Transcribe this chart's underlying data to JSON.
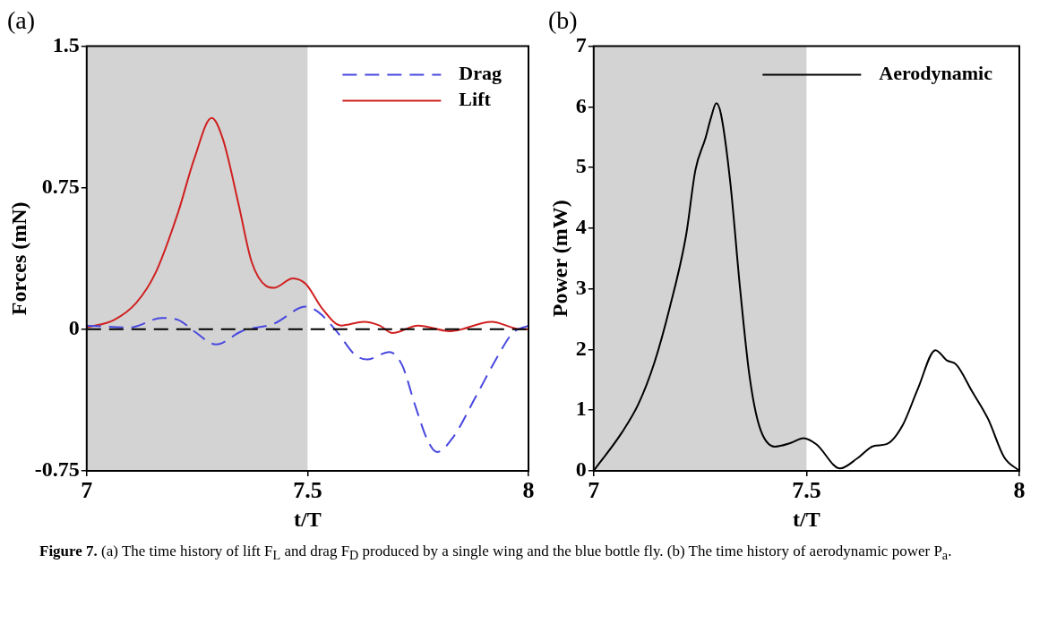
{
  "chart_data": [
    {
      "type": "line",
      "title": "(a)",
      "xlabel": "t/T",
      "ylabel": "Forces (mN)",
      "xlim": [
        7,
        8
      ],
      "xticks": [
        7,
        7.5,
        8
      ],
      "ylim": [
        -0.75,
        1.5
      ],
      "yticks": [
        -0.75,
        0,
        0.75,
        1.5
      ],
      "legend": "top right",
      "bands": [
        {
          "axis": "x",
          "from": 7,
          "to": 7.5,
          "color": "#d3d3d3"
        }
      ],
      "ref_lines": [
        {
          "axis": "y",
          "value": 0,
          "color": "#000000",
          "line_style": "dashed"
        }
      ],
      "series": [
        {
          "name": "Drag",
          "color": "#4848e0",
          "line_style": "dashed",
          "x": [
            7,
            7.098,
            7.17,
            7.207,
            7.243,
            7.293,
            7.351,
            7.424,
            7.496,
            7.525,
            7.569,
            7.605,
            7.634,
            7.685,
            7.714,
            7.743,
            7.772,
            7.793,
            7.83,
            7.88,
            7.931,
            7.964,
            8
          ],
          "values": [
            0.02,
            0.01,
            0.06,
            0.05,
            -0.01,
            -0.08,
            -0.01,
            0.03,
            0.12,
            0.09,
            -0.02,
            -0.13,
            -0.16,
            -0.12,
            -0.19,
            -0.4,
            -0.59,
            -0.65,
            -0.57,
            -0.36,
            -0.14,
            -0.02,
            0.02
          ]
        },
        {
          "name": "Lift",
          "color": "#d02020",
          "line_style": "solid",
          "x": [
            7,
            7.062,
            7.112,
            7.156,
            7.207,
            7.243,
            7.283,
            7.308,
            7.344,
            7.373,
            7.406,
            7.424,
            7.467,
            7.496,
            7.533,
            7.576,
            7.627,
            7.663,
            7.692,
            7.75,
            7.822,
            7.917,
            7.982,
            8
          ],
          "values": [
            0.01,
            0.05,
            0.14,
            0.3,
            0.62,
            0.9,
            1.12,
            1.01,
            0.66,
            0.36,
            0.23,
            0.22,
            0.27,
            0.24,
            0.11,
            0.02,
            0.04,
            0.02,
            -0.02,
            0.02,
            -0.01,
            0.04,
            0,
            0
          ]
        }
      ]
    },
    {
      "type": "line",
      "title": "(b)",
      "xlabel": "t/T",
      "ylabel": "Power (mW)",
      "xlim": [
        7,
        8
      ],
      "xticks": [
        7,
        7.5,
        8
      ],
      "ylim": [
        0,
        7
      ],
      "yticks": [
        0,
        1,
        2,
        3,
        4,
        5,
        6,
        7
      ],
      "legend": "top right",
      "bands": [
        {
          "axis": "x",
          "from": 7,
          "to": 7.5,
          "color": "#d3d3d3"
        }
      ],
      "annotations": [
        "Figure 7.",
        "(a) The time history of lift F$_{L}$ and drag F$_{D}$ produced by a single wing and the blue bottle fly. (b) The time history of aerodynamic power P$_{a}$."
      ],
      "series": [
        {
          "name": "Aerodynamic",
          "color": "#000000",
          "line_style": "solid",
          "x": [
            7,
            7.067,
            7.105,
            7.142,
            7.179,
            7.217,
            7.239,
            7.262,
            7.276,
            7.288,
            7.299,
            7.321,
            7.344,
            7.366,
            7.389,
            7.426,
            7.463,
            7.493,
            7.523,
            7.579,
            7.62,
            7.658,
            7.688,
            7.725,
            7.762,
            7.803,
            7.83,
            7.852,
            7.889,
            7.927,
            7.964,
            8
          ],
          "values": [
            0,
            0.64,
            1.1,
            1.77,
            2.7,
            3.88,
            4.96,
            5.47,
            5.83,
            6.06,
            5.88,
            4.75,
            3,
            1.57,
            0.74,
            0.4,
            0.46,
            0.54,
            0.44,
            0.04,
            0.21,
            0.41,
            0.44,
            0.74,
            1.36,
            1.99,
            1.82,
            1.75,
            1.31,
            0.85,
            0.23,
            0
          ]
        }
      ]
    }
  ]
}
